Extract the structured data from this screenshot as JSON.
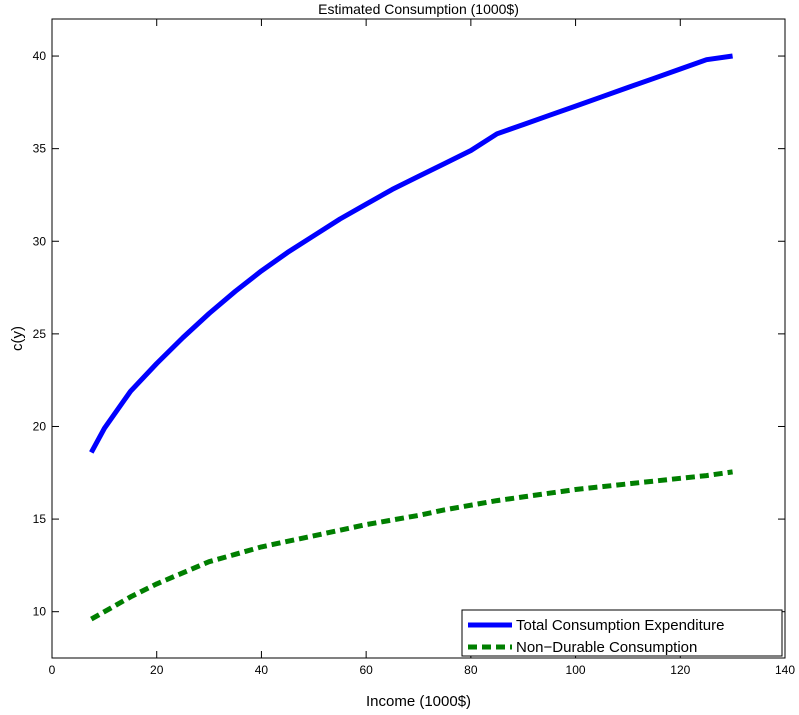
{
  "chart_data": {
    "type": "line",
    "title": "Estimated Consumption (1000$)",
    "xlabel": "Income (1000$)",
    "ylabel": "c(y)",
    "xlim": [
      0,
      140
    ],
    "ylim": [
      7.5,
      42
    ],
    "xticks": [
      0,
      20,
      40,
      60,
      80,
      100,
      120,
      140
    ],
    "yticks": [
      10,
      15,
      20,
      25,
      30,
      35,
      40
    ],
    "grid": false,
    "legend_position": "bottom-right",
    "series": [
      {
        "name": "Total Consumption Expenditure",
        "color": "#0000ff",
        "line_style": "solid",
        "x": [
          7.5,
          10,
          15,
          20,
          25,
          30,
          35,
          40,
          45,
          50,
          55,
          60,
          65,
          70,
          75,
          80,
          85,
          90,
          95,
          100,
          105,
          110,
          115,
          120,
          125,
          130
        ],
        "y": [
          18.6,
          19.9,
          21.9,
          23.4,
          24.8,
          26.1,
          27.3,
          28.4,
          29.4,
          30.3,
          31.2,
          32.0,
          32.8,
          33.5,
          34.2,
          34.9,
          35.8,
          36.3,
          36.8,
          37.3,
          37.8,
          38.3,
          38.8,
          39.3,
          39.8,
          40.0
        ]
      },
      {
        "name": "Non−Durable Consumption",
        "color": "#007f00",
        "line_style": "dashed",
        "x": [
          7.5,
          10,
          15,
          20,
          25,
          30,
          35,
          40,
          45,
          50,
          55,
          60,
          65,
          70,
          75,
          80,
          85,
          90,
          95,
          100,
          105,
          110,
          115,
          120,
          125,
          130
        ],
        "y": [
          9.6,
          10.0,
          10.8,
          11.5,
          12.1,
          12.7,
          13.1,
          13.5,
          13.8,
          14.1,
          14.4,
          14.7,
          14.95,
          15.2,
          15.5,
          15.75,
          16.0,
          16.2,
          16.4,
          16.6,
          16.75,
          16.9,
          17.05,
          17.2,
          17.35,
          17.55
        ]
      }
    ]
  }
}
